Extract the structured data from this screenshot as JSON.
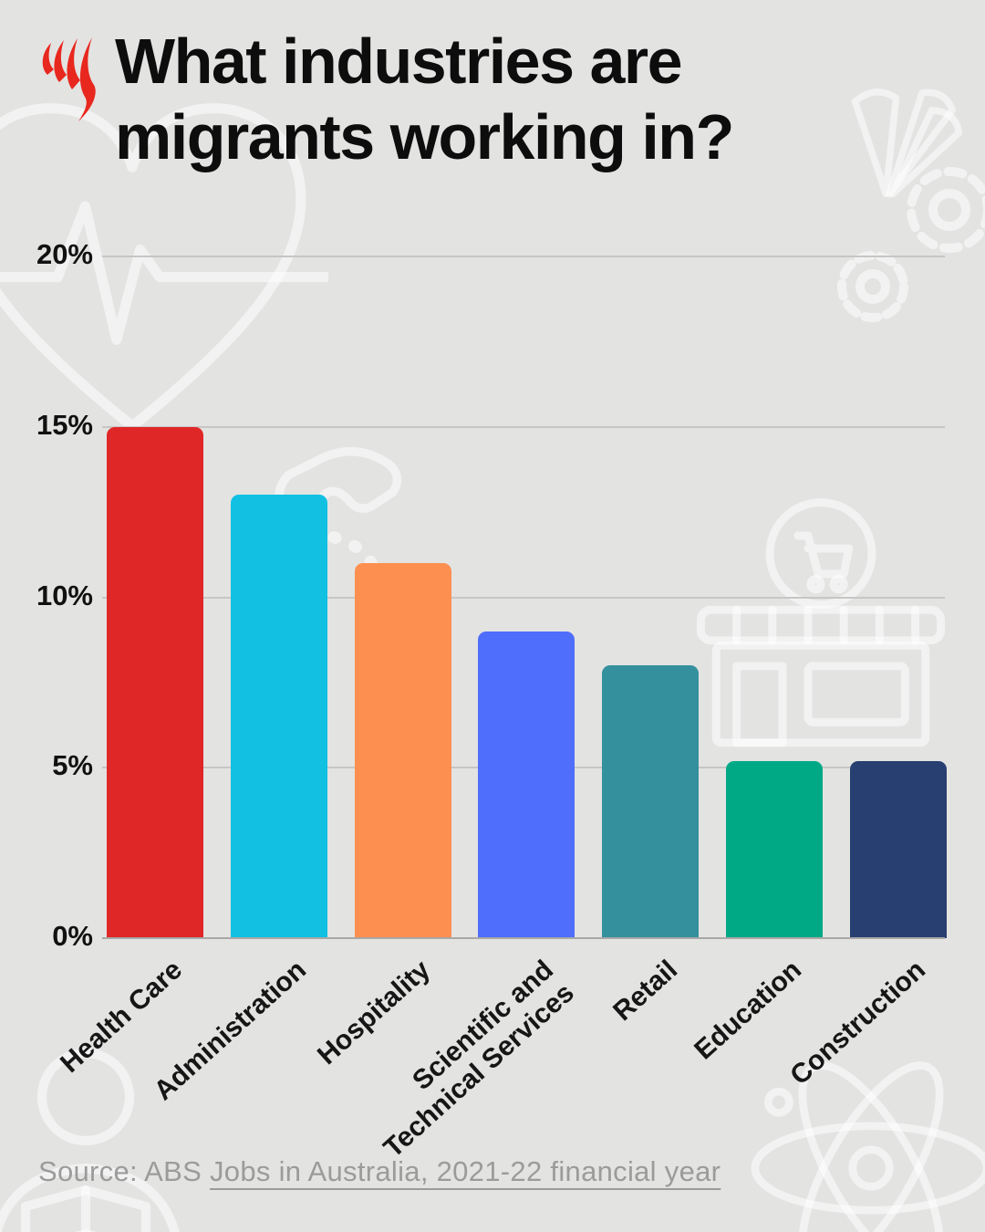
{
  "header": {
    "title": "What industries are migrants working in?",
    "logo": "sbs-logo"
  },
  "chart_data": {
    "type": "bar",
    "title": "What industries are migrants working in?",
    "categories": [
      "Health Care",
      "Administration",
      "Hospitality",
      "Scientific and\nTechnical Services",
      "Retail",
      "Education",
      "Construction"
    ],
    "values": [
      15,
      13,
      11,
      9,
      8,
      5.2,
      5.2
    ],
    "unit": "%",
    "colors": [
      "#e02727",
      "#12c0e2",
      "#fd9050",
      "#4f6efb",
      "#34909d",
      "#00a986",
      "#273f71"
    ],
    "ylim": [
      0,
      20
    ],
    "yticks": [
      {
        "label": "20%",
        "value": 20
      },
      {
        "label": "15%",
        "value": 15
      },
      {
        "label": "10%",
        "value": 10
      },
      {
        "label": "5%",
        "value": 5
      },
      {
        "label": "0%",
        "value": 0
      }
    ],
    "grid": true,
    "legend": false,
    "xlabel": "",
    "ylabel": ""
  },
  "footer": {
    "source_prefix": "Source: ABS ",
    "source_link": "Jobs in Australia, 2021-22 financial year"
  },
  "colors": {
    "background": "#e3e3e2",
    "gridline": "#c7c6c5",
    "axis_base": "#a9a8a7",
    "text": "#111111",
    "source_text": "#9b9b9b",
    "logo_red": "#e8281e"
  },
  "watermark_icons": [
    "heart-ecg-icon",
    "cards-fan-icon",
    "gears-icon",
    "phone-handset-icon",
    "storefront-cart-icon",
    "person-reading-icon",
    "atom-icon"
  ]
}
